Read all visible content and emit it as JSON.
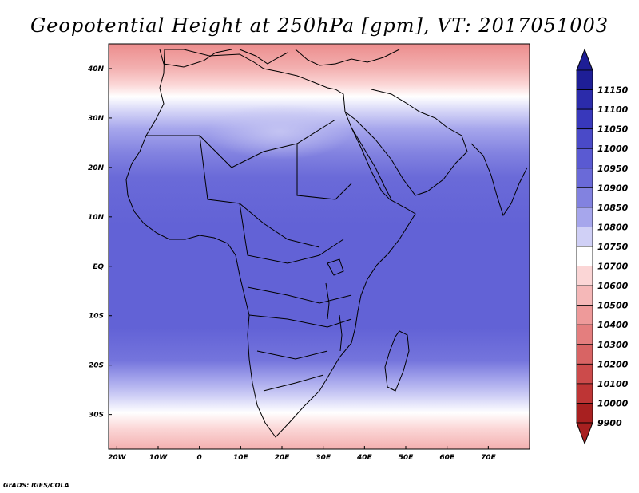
{
  "title": "Geopotential Height at 250hPa [gpm], VT: 2017051003",
  "credit": "GrADS: IGES/COLA",
  "axes": {
    "x_ticks": [
      "20W",
      "10W",
      "0",
      "10E",
      "20E",
      "30E",
      "40E",
      "50E",
      "60E",
      "70E"
    ],
    "y_ticks": [
      "40N",
      "30N",
      "20N",
      "10N",
      "EQ",
      "10S",
      "20S",
      "30S"
    ]
  },
  "colorbar": {
    "levels": [
      "11150",
      "11100",
      "11050",
      "11000",
      "10950",
      "10900",
      "10850",
      "10800",
      "10750",
      "10700",
      "10600",
      "10500",
      "10400",
      "10300",
      "10200",
      "10100",
      "10000",
      "9900"
    ],
    "colors": [
      "#1e1e96",
      "#2b2baa",
      "#3838bb",
      "#4a4ac8",
      "#5a5ad2",
      "#6a6ad8",
      "#8282e0",
      "#a6a6ec",
      "#d0d0f6",
      "#ffffff",
      "#fbd6d6",
      "#f5b8b8",
      "#ee9a9a",
      "#e47e7e",
      "#d86464",
      "#cc4b4b",
      "#be3535",
      "#a82020"
    ]
  },
  "map": {
    "lon_range": [
      -22,
      80
    ],
    "lat_range": [
      -37,
      45
    ]
  }
}
